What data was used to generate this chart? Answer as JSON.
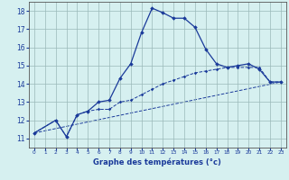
{
  "xlabel": "Graphe des températures (°c)",
  "bg_color": "#d6f0f0",
  "grid_color": "#9ab8b8",
  "line_color": "#1a3a9a",
  "label_color": "#1a3a9a",
  "ylim": [
    10.5,
    18.5
  ],
  "xlim": [
    -0.5,
    23.5
  ],
  "yticks": [
    11,
    12,
    13,
    14,
    15,
    16,
    17,
    18
  ],
  "xticks": [
    0,
    1,
    2,
    3,
    4,
    5,
    6,
    7,
    8,
    9,
    10,
    11,
    12,
    13,
    14,
    15,
    16,
    17,
    18,
    19,
    20,
    21,
    22,
    23
  ],
  "curve1_x": [
    0,
    2,
    3,
    4,
    5,
    6,
    7,
    8,
    9,
    10,
    11,
    12,
    13,
    14,
    15,
    16,
    17,
    18,
    19,
    20,
    21,
    22,
    23
  ],
  "curve1_y": [
    11.3,
    12.0,
    11.1,
    12.3,
    12.5,
    13.0,
    13.1,
    14.3,
    15.1,
    16.8,
    18.15,
    17.9,
    17.6,
    17.6,
    17.1,
    15.9,
    15.1,
    14.9,
    15.0,
    15.1,
    14.8,
    14.1,
    14.1
  ],
  "curve2_x": [
    0,
    2,
    3,
    4,
    5,
    6,
    7,
    8,
    9,
    10,
    11,
    12,
    13,
    14,
    15,
    16,
    17,
    18,
    19,
    20,
    21,
    22,
    23
  ],
  "curve2_y": [
    11.3,
    12.0,
    11.1,
    12.3,
    12.5,
    12.6,
    12.6,
    13.0,
    13.1,
    13.4,
    13.7,
    14.0,
    14.2,
    14.4,
    14.6,
    14.7,
    14.8,
    14.9,
    14.9,
    14.9,
    14.9,
    14.1,
    14.1
  ],
  "curve3_x": [
    0,
    23
  ],
  "curve3_y": [
    11.3,
    14.1
  ]
}
